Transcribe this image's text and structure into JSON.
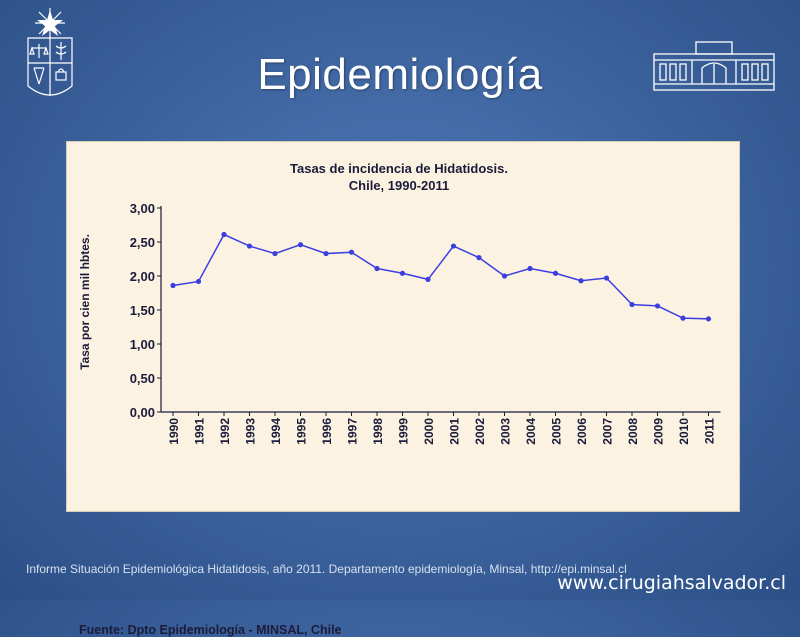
{
  "slide": {
    "title": "Epidemiología",
    "footer_note": "Informe Situación Epidemiológica Hidatidosis, año 2011. Departamento epidemiología, Minsal, http://epi.minsal.cl",
    "site_url": "www.cirugiahsalvador.cl"
  },
  "colors": {
    "background": "#3f66a1",
    "panel": "#fcf2e2",
    "series": "#3b3fe0",
    "text_dark": "#1b1b3a"
  },
  "chart_data": {
    "type": "line",
    "title_line1": "Tasas de incidencia de Hidatidosis.",
    "title_line2": "Chile, 1990-2011",
    "ylabel": "Tasa por cien mil hbtes.",
    "xlabel": "",
    "source": "Fuente: Dpto Epidemiología - MINSAL, Chile",
    "ylim": [
      0,
      3.0
    ],
    "y_ticks": [
      "0,00",
      "0,50",
      "1,00",
      "1,50",
      "2,00",
      "2,50",
      "3,00"
    ],
    "grid": false,
    "legend": "none",
    "categories": [
      "1990",
      "1991",
      "1992",
      "1993",
      "1994",
      "1995",
      "1996",
      "1997",
      "1998",
      "1999",
      "2000",
      "2001",
      "2002",
      "2003",
      "2004",
      "2005",
      "2006",
      "2007",
      "2008",
      "2009",
      "2010",
      "2011"
    ],
    "series": [
      {
        "values": [
          1.86,
          1.92,
          2.61,
          2.44,
          2.33,
          2.46,
          2.33,
          2.35,
          2.11,
          2.04,
          1.95,
          2.44,
          2.27,
          2.0,
          2.11,
          2.04,
          1.93,
          1.97,
          1.58,
          1.56,
          1.38,
          1.37
        ]
      }
    ]
  }
}
